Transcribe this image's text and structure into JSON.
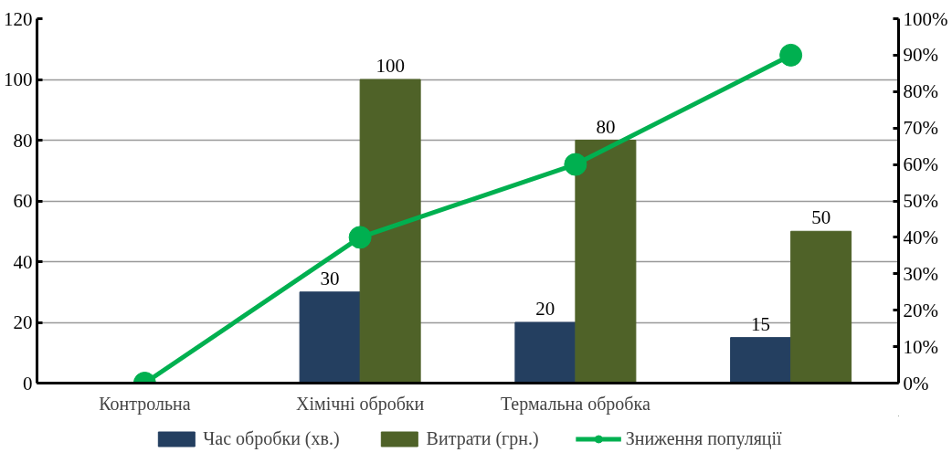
{
  "chart_data": {
    "type": "bar",
    "categories": [
      "Контрольна",
      "Хімічні обробки",
      "Термальна обробка",
      null
    ],
    "series": [
      {
        "name": "Час обробки (хв.)",
        "color": "#243f60",
        "values": [
          null,
          30,
          20,
          15
        ],
        "value_labels": [
          null,
          "30",
          "20",
          "15"
        ]
      },
      {
        "name": "Витрати (грн.)",
        "color": "#4f6228",
        "values": [
          null,
          100,
          80,
          50
        ],
        "value_labels": [
          null,
          "100",
          "80",
          "50"
        ]
      },
      {
        "name": "Зниження популяції",
        "type": "line",
        "axis": "y2",
        "color": "#00b050",
        "values": [
          0,
          40,
          60,
          90
        ],
        "marker": "circle",
        "line_style": "solid"
      }
    ],
    "ylim": [
      0,
      120
    ],
    "yticks": [
      0,
      20,
      40,
      60,
      80,
      100,
      120
    ],
    "y2lim": [
      0,
      100
    ],
    "y2ticks": [
      {
        "value": 0,
        "label": "0%"
      },
      {
        "value": 10,
        "label": "10%"
      },
      {
        "value": 20,
        "label": "20%"
      },
      {
        "value": 30,
        "label": "30%"
      },
      {
        "value": 40,
        "label": "40%"
      },
      {
        "value": 50,
        "label": "50%"
      },
      {
        "value": 60,
        "label": "60%"
      },
      {
        "value": 70,
        "label": "70%"
      },
      {
        "value": 80,
        "label": "80%"
      },
      {
        "value": 90,
        "label": "90%"
      },
      {
        "value": 100,
        "label": "100%"
      }
    ],
    "grid": "y",
    "legend": "bottom"
  }
}
